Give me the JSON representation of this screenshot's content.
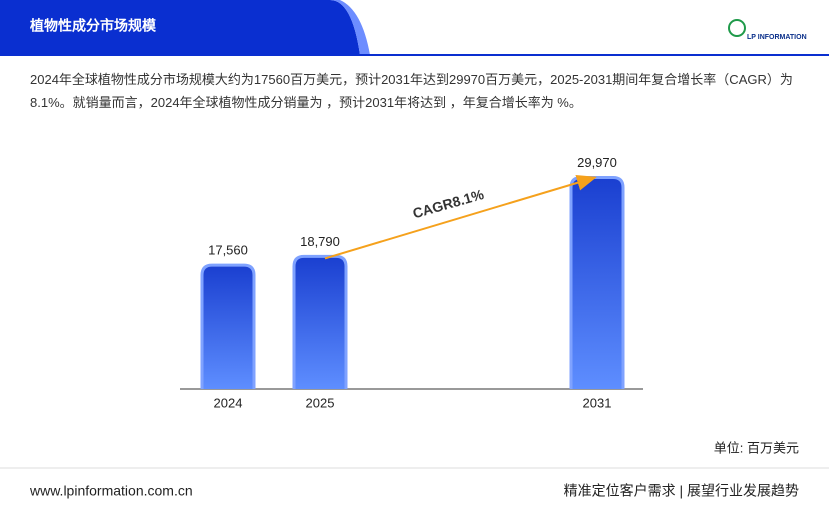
{
  "header": {
    "title": "植物性成分市场规模",
    "logo": "LP INFORMATION"
  },
  "description": "2024年全球植物性成分市场规模大约为17560百万美元，预计2031年达到29970百万美元，2025-2031期间年复合增长率（CAGR）为8.1%。就销量而言，2024年全球植物性成分销量为 ，预计2031年将达到 ，年复合增长率为 %。",
  "chart_data": {
    "type": "bar",
    "categories": [
      "2024",
      "2025",
      "2031"
    ],
    "values": [
      17560,
      18790,
      29970
    ],
    "value_labels": [
      "17,560",
      "18,790",
      "29,970"
    ],
    "ylim": [
      0,
      35000
    ],
    "annotation": "CAGR8.1%",
    "unit": "单位: 百万美元",
    "color": "#2f5fe8"
  },
  "footer": {
    "url": "www.lpinformation.com.cn",
    "slogan": "精准定位客户需求 | 展望行业发展趋势"
  }
}
